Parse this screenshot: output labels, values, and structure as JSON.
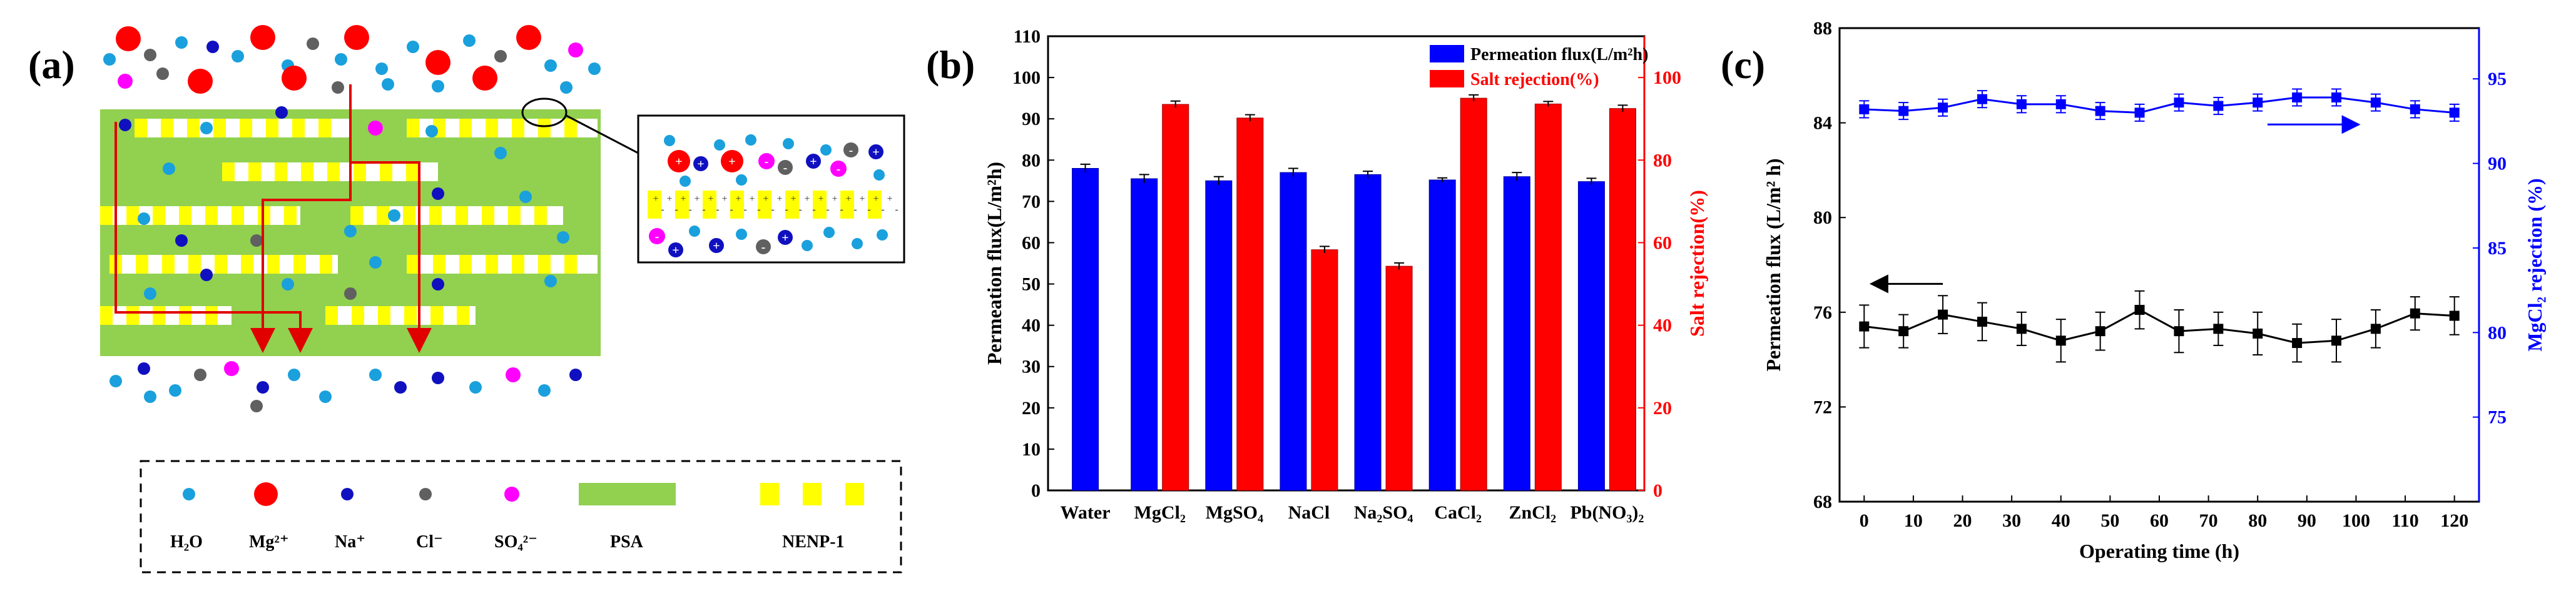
{
  "panel_labels": [
    "(a)",
    "(b)",
    "(c)"
  ],
  "colors": {
    "psa": "#92d050",
    "nenp": "#ffff00",
    "flow_arrow": "#e00000",
    "mg": "#ff0000",
    "na": "#1010c0",
    "cl": "#606060",
    "so4": "#ff00ff",
    "h2o": "#1aa0dc",
    "flux_bar": "#0000ff",
    "rejection_bar": "#ff0000",
    "flux_line": "#000000",
    "rejection_line": "#0000ff"
  },
  "panel_a": {
    "legend": [
      {
        "key": "h2o",
        "label": "H₂O",
        "shape": "small-circle"
      },
      {
        "key": "mg",
        "label": "Mg²⁺",
        "shape": "large-circle"
      },
      {
        "key": "na",
        "label": "Na⁺",
        "shape": "small-circle"
      },
      {
        "key": "cl",
        "label": "Cl⁻",
        "shape": "small-circle"
      },
      {
        "key": "so4",
        "label": "SO₄²⁻",
        "shape": "small-circle"
      },
      {
        "key": "psa",
        "label": "PSA",
        "shape": "bar"
      },
      {
        "key": "nenp",
        "label": "NENP-1",
        "shape": "stripes"
      }
    ]
  },
  "chart_data": [
    {
      "panel": "b",
      "type": "bar",
      "categories": [
        "Water",
        "MgCl₂",
        "MgSO₄",
        "NaCl",
        "Na₂SO₄",
        "CaCl₂",
        "ZnCl₂",
        "Pb(NO₃)₂"
      ],
      "series": [
        {
          "name": "Permeation flux(L/m²h)",
          "axis": "left",
          "values": [
            78.0,
            75.5,
            75.0,
            77.0,
            76.5,
            75.2,
            76.0,
            74.8
          ],
          "errors": [
            1.0,
            1.0,
            1.0,
            1.0,
            0.8,
            0.5,
            1.0,
            0.8
          ]
        },
        {
          "name": "Salt rejection(%)",
          "axis": "right",
          "values": [
            null,
            93.5,
            90.2,
            58.3,
            54.3,
            95.0,
            93.6,
            92.5
          ],
          "errors": [
            null,
            0.8,
            0.8,
            0.8,
            0.8,
            0.8,
            0.6,
            0.8
          ]
        }
      ],
      "ylabel_left": "Permeation flux(L/m²h)",
      "ylabel_right": "Salt rejection(%)",
      "ylim_left": [
        0,
        110
      ],
      "ylim_right": [
        0,
        110
      ],
      "yticks_left": [
        "0",
        "10",
        "20",
        "30",
        "40",
        "50",
        "60",
        "70",
        "80",
        "90",
        "100",
        "110"
      ],
      "yticks_right": [
        "0",
        "20",
        "40",
        "60",
        "80",
        "100"
      ],
      "legend_position": "top-right"
    },
    {
      "panel": "c",
      "type": "line",
      "x": [
        0,
        8,
        16,
        24,
        32,
        40,
        48,
        56,
        64,
        72,
        80,
        88,
        96,
        104,
        112,
        120
      ],
      "series": [
        {
          "name": "Permeation flux",
          "axis": "left",
          "marker": "square",
          "values": [
            75.4,
            75.2,
            75.9,
            75.6,
            75.3,
            74.8,
            75.2,
            76.1,
            75.2,
            75.3,
            75.1,
            74.7,
            74.8,
            75.3,
            75.95,
            75.85
          ],
          "errors": [
            0.9,
            0.7,
            0.8,
            0.8,
            0.7,
            0.9,
            0.8,
            0.8,
            0.9,
            0.7,
            0.9,
            0.8,
            0.9,
            0.8,
            0.7,
            0.8
          ]
        },
        {
          "name": "MgCl₂ rejection",
          "axis": "right",
          "marker": "square",
          "values": [
            93.2,
            93.1,
            93.3,
            93.8,
            93.5,
            93.5,
            93.1,
            93.0,
            93.6,
            93.4,
            93.6,
            93.9,
            93.9,
            93.6,
            93.2,
            93.0
          ],
          "errors": [
            0.5,
            0.5,
            0.5,
            0.5,
            0.5,
            0.5,
            0.5,
            0.5,
            0.5,
            0.5,
            0.5,
            0.5,
            0.5,
            0.5,
            0.5,
            0.5
          ]
        }
      ],
      "xlabel": "Operating time (h)",
      "ylabel_left": "Permeation flux (L/m² h)",
      "ylabel_right": "MgCl₂ rejection (%)",
      "xlim": [
        -5,
        125
      ],
      "ylim_left": [
        68,
        88
      ],
      "ylim_right": [
        70,
        98
      ],
      "xticks": [
        "0",
        "10",
        "20",
        "30",
        "40",
        "50",
        "60",
        "70",
        "80",
        "90",
        "100",
        "110",
        "120"
      ],
      "yticks_left": [
        "68",
        "72",
        "76",
        "80",
        "84",
        "88"
      ],
      "yticks_right": [
        "75",
        "80",
        "85",
        "90",
        "95"
      ]
    }
  ]
}
